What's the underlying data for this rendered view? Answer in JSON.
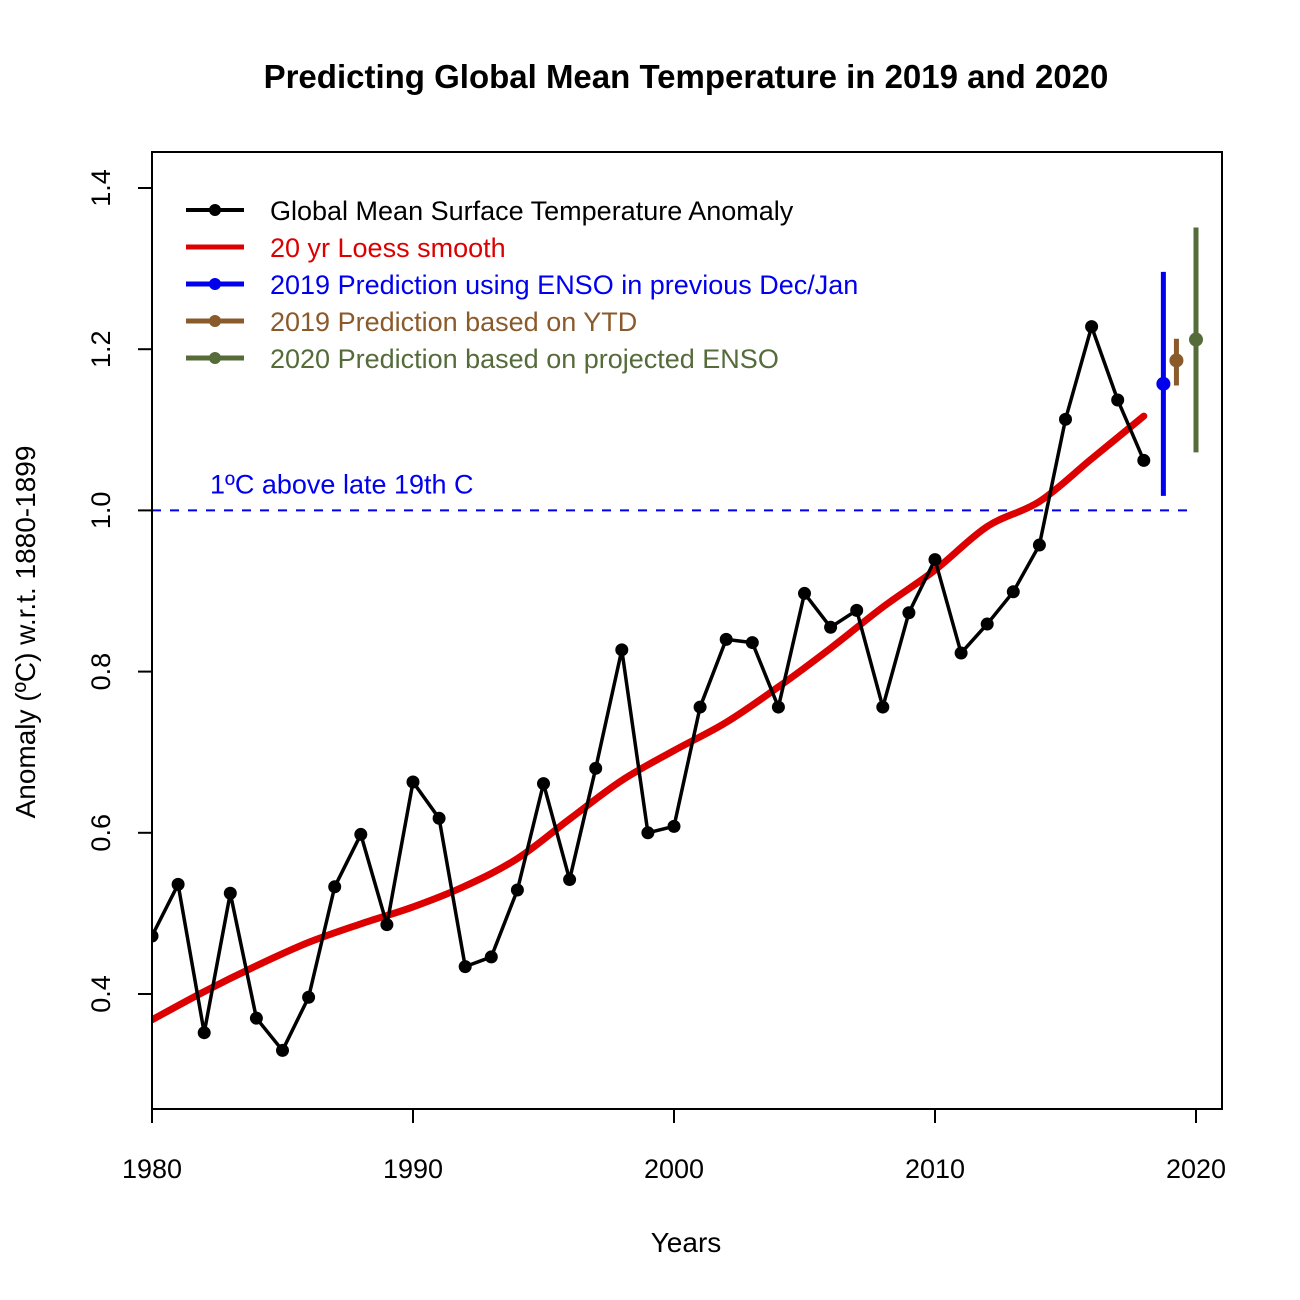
{
  "chart_data": {
    "type": "line",
    "title": "Predicting Global Mean Temperature in 2019 and 2020",
    "xlabel": "Years",
    "ylabel": "Anomaly (ºC) w.r.t. 1880-1899",
    "xlim": [
      1980,
      2021
    ],
    "ylim": [
      0.27,
      1.45
    ],
    "x_ticks": [
      "1980",
      "1990",
      "2000",
      "2010",
      "2020"
    ],
    "y_ticks": [
      "0.4",
      "0.6",
      "0.8",
      "1.0",
      "1.2",
      "1.4"
    ],
    "grid": false,
    "legend_position": "top-left",
    "series": [
      {
        "name": "Global Mean Surface Temperature Anomaly",
        "color": "#000000",
        "x": [
          1980,
          1981,
          1982,
          1983,
          1984,
          1985,
          1986,
          1987,
          1988,
          1989,
          1990,
          1991,
          1992,
          1993,
          1994,
          1995,
          1996,
          1997,
          1998,
          1999,
          2000,
          2001,
          2002,
          2003,
          2004,
          2005,
          2006,
          2007,
          2008,
          2009,
          2010,
          2011,
          2012,
          2013,
          2014,
          2015,
          2016,
          2017,
          2018
        ],
        "y": [
          0.472,
          0.536,
          0.352,
          0.525,
          0.37,
          0.33,
          0.396,
          0.533,
          0.598,
          0.486,
          0.663,
          0.618,
          0.434,
          0.446,
          0.529,
          0.661,
          0.542,
          0.68,
          0.827,
          0.6,
          0.608,
          0.756,
          0.84,
          0.836,
          0.756,
          0.897,
          0.855,
          0.876,
          0.756,
          0.873,
          0.939,
          0.823,
          0.859,
          0.899,
          0.957,
          1.113,
          1.228,
          1.137,
          1.062
        ]
      },
      {
        "name": "20 yr Loess smooth",
        "color": "#dd0000",
        "x": [
          1980,
          1982,
          1984,
          1986,
          1988,
          1990,
          1992,
          1994,
          1996,
          1998,
          2000,
          2002,
          2004,
          2006,
          2008,
          2010,
          2012,
          2014,
          2016,
          2018
        ],
        "y": [
          0.368,
          0.403,
          0.435,
          0.464,
          0.487,
          0.508,
          0.534,
          0.568,
          0.617,
          0.665,
          0.702,
          0.737,
          0.781,
          0.829,
          0.88,
          0.926,
          0.98,
          1.011,
          1.064,
          1.117
        ]
      },
      {
        "name": "2019 Prediction using ENSO in previous Dec/Jan",
        "color": "#0000ee",
        "x": [
          2018.75
        ],
        "y": [
          1.157
        ],
        "lower": [
          1.018
        ],
        "upper": [
          1.296
        ]
      },
      {
        "name": "2019 Prediction based on YTD",
        "color": "#8b5a2b",
        "x": [
          2019.25
        ],
        "y": [
          1.186
        ],
        "lower": [
          1.155
        ],
        "upper": [
          1.213
        ]
      },
      {
        "name": "2020 Prediction based on projected ENSO",
        "color": "#556b3a",
        "x": [
          2020
        ],
        "y": [
          1.212
        ],
        "lower": [
          1.072
        ],
        "upper": [
          1.351
        ]
      }
    ],
    "annotations": [
      {
        "text": "1ºC above late 19th C",
        "y": 1.0,
        "x_from": 1980,
        "x_to": 2019.75,
        "color": "#0000ee",
        "style": "dashed"
      }
    ]
  }
}
